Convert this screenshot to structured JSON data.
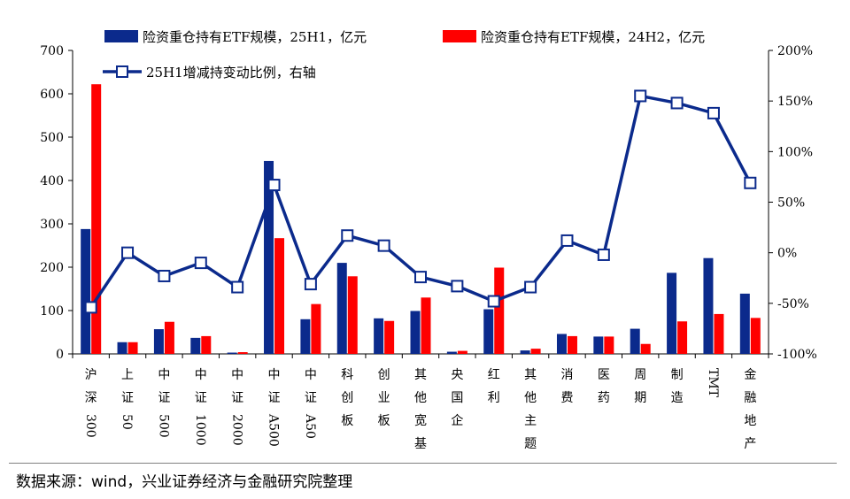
{
  "chart_data": {
    "type": "bar+line",
    "categories": [
      "沪深300",
      "上证50",
      "中证500",
      "中证1000",
      "中证2000",
      "中证A500",
      "中证A50",
      "科创板",
      "创业板",
      "其他宽基",
      "央国企",
      "红利",
      "其他主题",
      "消费",
      "医药",
      "周期",
      "制造",
      "TMT",
      "金融地产"
    ],
    "category_labels": [
      [
        "沪",
        "深",
        "300"
      ],
      [
        "上",
        "证",
        "50"
      ],
      [
        "中",
        "证",
        "500"
      ],
      [
        "中",
        "证",
        "1000"
      ],
      [
        "中",
        "证",
        "2000"
      ],
      [
        "中",
        "证",
        "A500"
      ],
      [
        "中",
        "证",
        "A50"
      ],
      [
        "科",
        "创",
        "板"
      ],
      [
        "创",
        "业",
        "板"
      ],
      [
        "其",
        "他",
        "宽",
        "基"
      ],
      [
        "央",
        "国",
        "企"
      ],
      [
        "红",
        "利"
      ],
      [
        "其",
        "他",
        "主",
        "题"
      ],
      [
        "消",
        "费"
      ],
      [
        "医",
        "药"
      ],
      [
        "周",
        "期"
      ],
      [
        "制",
        "造"
      ],
      [
        "TMT"
      ],
      [
        "金",
        "融",
        "地",
        "产"
      ]
    ],
    "series": [
      {
        "name": "险资重仓持有ETF规模，25H1，亿元",
        "axis": "left",
        "kind": "bar",
        "color": "#0b2a8c",
        "values": [
          288,
          27,
          57,
          37,
          3,
          445,
          80,
          210,
          82,
          99,
          5,
          103,
          8,
          46,
          40,
          58,
          187,
          221,
          139
        ]
      },
      {
        "name": "险资重仓持有ETF规模，24H2，亿元",
        "axis": "left",
        "kind": "bar",
        "color": "#ff0000",
        "values": [
          622,
          27,
          74,
          41,
          4,
          267,
          115,
          179,
          76,
          130,
          7,
          199,
          12,
          41,
          40,
          23,
          75,
          92,
          83
        ]
      },
      {
        "name": "25H1增减持变动比例，右轴",
        "axis": "right",
        "kind": "line",
        "color": "#0b2a8c",
        "values": [
          -54,
          0,
          -23,
          -10,
          -34,
          67,
          -31,
          17,
          7,
          -24,
          -33,
          -48,
          -34,
          12,
          -2,
          155,
          148,
          138,
          69
        ]
      }
    ],
    "y_left": {
      "min": 0,
      "max": 700,
      "ticks": [
        0,
        100,
        200,
        300,
        400,
        500,
        600,
        700
      ],
      "tick_labels": [
        "0",
        "100",
        "200",
        "300",
        "400",
        "500",
        "600",
        "700"
      ]
    },
    "y_right": {
      "min": -100,
      "max": 200,
      "ticks": [
        -100,
        -50,
        0,
        50,
        100,
        150,
        200
      ],
      "tick_labels": [
        "-100%",
        "-50%",
        "0%",
        "50%",
        "100%",
        "150%",
        "200%"
      ]
    },
    "legend_position": "top",
    "grid": false
  },
  "source_text": "数据来源：wind，兴业证券经济与金融研究院整理"
}
